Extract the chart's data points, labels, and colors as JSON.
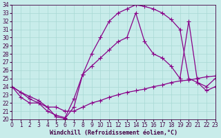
{
  "xlabel": "Windchill (Refroidissement éolien,°C)",
  "ylabel": "",
  "bg_color": "#c8ecea",
  "grid_color": "#a8d8d4",
  "line_color": "#880088",
  "xlim": [
    0,
    23
  ],
  "ylim": [
    20,
    34
  ],
  "xticks": [
    0,
    1,
    2,
    3,
    4,
    5,
    6,
    7,
    8,
    9,
    10,
    11,
    12,
    13,
    14,
    15,
    16,
    17,
    18,
    19,
    20,
    21,
    22,
    23
  ],
  "yticks": [
    20,
    21,
    22,
    23,
    24,
    25,
    26,
    27,
    28,
    29,
    30,
    31,
    32,
    33,
    34
  ],
  "line1_x": [
    0,
    1,
    2,
    3,
    4,
    5,
    6,
    7,
    8,
    9,
    10,
    11,
    12,
    13,
    14,
    15,
    16,
    17,
    18,
    19,
    20,
    21,
    22,
    23
  ],
  "line1_y": [
    24.0,
    23.3,
    22.8,
    22.3,
    21.5,
    20.3,
    20.1,
    21.5,
    25.5,
    28.0,
    30.0,
    32.0,
    33.0,
    33.5,
    34.0,
    33.8,
    33.5,
    33.0,
    32.2,
    31.0,
    25.0,
    24.5,
    23.5,
    24.0
  ],
  "line2_x": [
    0,
    1,
    2,
    3,
    4,
    5,
    6,
    7,
    8,
    9,
    10,
    11,
    12,
    13,
    14,
    15,
    16,
    17,
    18,
    19,
    20,
    21,
    22,
    23
  ],
  "line2_y": [
    24.0,
    23.3,
    22.5,
    22.0,
    21.0,
    20.5,
    20.2,
    22.5,
    25.5,
    26.5,
    27.5,
    28.5,
    29.5,
    30.0,
    33.0,
    29.5,
    28.0,
    27.5,
    26.5,
    25.0,
    32.0,
    24.5,
    24.0,
    25.0
  ],
  "line3_x": [
    0,
    1,
    2,
    3,
    4,
    5,
    6,
    7,
    8,
    9,
    10,
    11,
    12,
    13,
    14,
    15,
    16,
    17,
    18,
    19,
    20,
    21,
    22,
    23
  ],
  "line3_y": [
    24.0,
    22.7,
    22.0,
    22.0,
    21.5,
    21.5,
    21.0,
    21.0,
    21.5,
    22.0,
    22.3,
    22.7,
    23.0,
    23.3,
    23.5,
    23.7,
    24.0,
    24.2,
    24.5,
    24.7,
    24.8,
    25.0,
    25.2,
    25.3
  ],
  "marker": "+",
  "markersize": 4,
  "markeredgewidth": 0.8,
  "linewidth": 0.9,
  "xlabel_fontsize": 6.0,
  "tick_fontsize": 5.5,
  "label_color": "#440044"
}
